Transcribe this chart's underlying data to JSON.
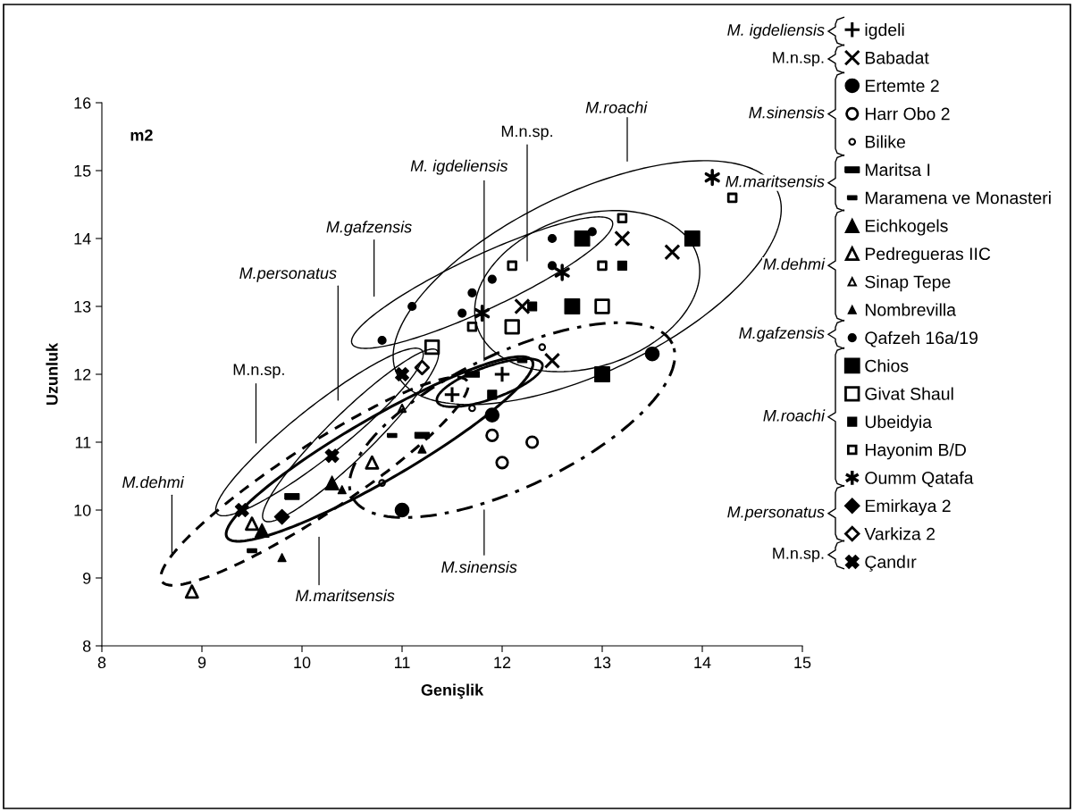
{
  "chart_data": {
    "type": "scatter",
    "title": "m2",
    "xlabel": "Genişlik",
    "ylabel": "Uzunluk",
    "xlim": [
      8,
      15
    ],
    "xticks": [
      8,
      9,
      10,
      11,
      12,
      13,
      14,
      15
    ],
    "ylim": [
      8,
      16
    ],
    "yticks": [
      8,
      9,
      10,
      11,
      12,
      13,
      14,
      15,
      16
    ],
    "grid": false,
    "legend": "right",
    "annotations": [
      "M.gafzensis",
      "M.personatus",
      "M. igdeliensis",
      "M.n.sp.",
      "M.roachi",
      "M.n.sp.",
      "M.dehmi",
      "M.maritsensis",
      "M.sinensis",
      "M. igdeliensis",
      "M.n.sp.",
      "M.sinensis",
      "M.maritsensis",
      "M.dehmi",
      "M.gafzensis",
      "M.roachi",
      "M.personatus",
      "M.n.sp."
    ],
    "series": [
      {
        "name": "igdeli",
        "color": "#000000",
        "x": [
          11.5,
          12.0
        ],
        "values": [
          11.7,
          12.0
        ]
      },
      {
        "name": "Babadat",
        "color": "#000000",
        "x": [
          13.2,
          13.7,
          12.2,
          12.5
        ],
        "values": [
          14.0,
          13.8,
          13.0,
          12.2
        ]
      },
      {
        "name": "Ertemte 2",
        "color": "#000000",
        "x": [
          13.5,
          11.9,
          11.0
        ],
        "values": [
          12.3,
          11.4,
          10.0
        ]
      },
      {
        "name": "Harr Obo 2",
        "color": "#000000",
        "x": [
          11.9,
          12.3,
          12.0
        ],
        "values": [
          11.1,
          11.0,
          10.7
        ]
      },
      {
        "name": "Bilike",
        "color": "#000000",
        "x": [
          12.4,
          11.7,
          10.8
        ],
        "values": [
          12.4,
          11.5,
          10.4
        ]
      },
      {
        "name": "Maritsa I",
        "color": "#000000",
        "x": [
          11.7,
          11.2,
          9.9
        ],
        "values": [
          12.0,
          11.1,
          10.2
        ]
      },
      {
        "name": "Maramena ve Monasteri",
        "color": "#000000",
        "x": [
          12.2,
          10.9,
          9.5
        ],
        "values": [
          12.2,
          11.1,
          9.4
        ]
      },
      {
        "name": "Eichkogels",
        "color": "#000000",
        "x": [
          10.3,
          9.6
        ],
        "values": [
          10.4,
          9.7
        ]
      },
      {
        "name": "Pedregueras IIC",
        "color": "#000000",
        "x": [
          10.7,
          9.5,
          8.9
        ],
        "values": [
          10.7,
          9.8,
          8.8
        ]
      },
      {
        "name": "Sinap Tepe",
        "color": "#000000",
        "x": [
          11.0
        ],
        "values": [
          11.5
        ]
      },
      {
        "name": "Nombrevilla",
        "color": "#000000",
        "x": [
          11.2,
          10.4,
          9.8
        ],
        "values": [
          10.9,
          10.3,
          9.3
        ]
      },
      {
        "name": "Qafzeh 16a/19",
        "color": "#000000",
        "x": [
          10.8,
          11.1,
          11.6,
          11.7,
          11.9,
          12.5,
          12.5,
          12.9
        ],
        "values": [
          12.5,
          13.0,
          12.9,
          13.2,
          13.4,
          13.6,
          14.0,
          14.1
        ]
      },
      {
        "name": "Chios",
        "color": "#000000",
        "x": [
          12.8,
          13.9,
          12.7,
          13.0
        ],
        "values": [
          14.0,
          14.0,
          13.0,
          12.0
        ]
      },
      {
        "name": "Givat Shaul",
        "color": "#000000",
        "x": [
          11.3,
          12.1,
          13.0
        ],
        "values": [
          12.4,
          12.7,
          13.0
        ]
      },
      {
        "name": "Ubeidyia",
        "color": "#000000",
        "x": [
          12.3,
          13.2,
          11.9
        ],
        "values": [
          13.0,
          13.6,
          11.7
        ]
      },
      {
        "name": "Hayonim B/D",
        "color": "#000000",
        "x": [
          14.3,
          13.2,
          12.1,
          13.0,
          11.7
        ],
        "values": [
          14.6,
          14.3,
          13.6,
          13.6,
          12.7
        ]
      },
      {
        "name": "Oumm Qatafa",
        "color": "#000000",
        "x": [
          14.1,
          12.6,
          11.8
        ],
        "values": [
          14.9,
          13.5,
          12.9
        ]
      },
      {
        "name": "Emirkaya 2",
        "color": "#000000",
        "x": [
          9.8
        ],
        "values": [
          9.9
        ]
      },
      {
        "name": "Varkiza 2",
        "color": "#000000",
        "x": [
          11.2
        ],
        "values": [
          12.1
        ]
      },
      {
        "name": "Çandır",
        "color": "#000000",
        "x": [
          11.0,
          10.3,
          9.4
        ],
        "values": [
          12.0,
          10.8,
          10.0
        ]
      }
    ]
  }
}
